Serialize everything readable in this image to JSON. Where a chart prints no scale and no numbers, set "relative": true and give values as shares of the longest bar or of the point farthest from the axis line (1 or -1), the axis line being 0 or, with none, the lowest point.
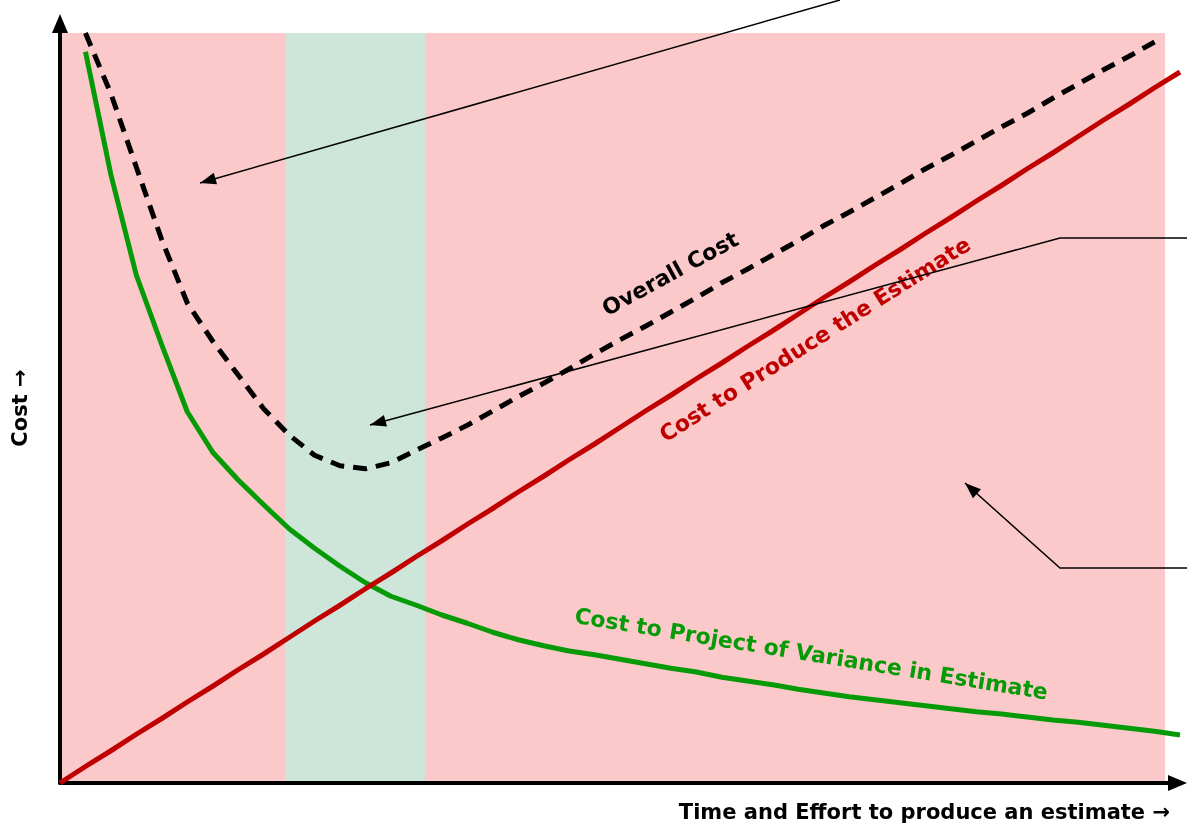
{
  "chart_data": {
    "type": "line",
    "relative": true,
    "xlabel": "Time and Effort to produce an estimate →",
    "ylabel": "Cost →",
    "grid": false,
    "legend": false,
    "marker": "none",
    "categories": [
      null,
      null,
      null,
      null,
      null,
      null,
      null,
      null,
      null,
      null,
      null,
      null,
      null,
      null,
      null,
      null,
      null,
      null,
      null,
      null,
      null,
      null,
      null,
      null,
      null,
      null,
      null,
      null,
      null,
      null,
      null,
      null,
      null,
      null,
      null,
      null,
      null,
      null,
      null,
      null,
      null,
      null,
      null,
      null,
      null
    ],
    "series": [
      {
        "name": "Cost to Project of Variance in Estimate",
        "color": "#079a07",
        "line_style": "solid",
        "values": [
          null,
          0.975,
          0.811,
          0.677,
          0.584,
          0.495,
          0.441,
          0.404,
          0.371,
          0.339,
          0.313,
          0.289,
          0.267,
          0.249,
          0.237,
          0.224,
          0.213,
          0.201,
          0.191,
          0.183,
          0.176,
          0.171,
          0.165,
          0.159,
          0.153,
          0.148,
          0.141,
          0.136,
          0.131,
          0.125,
          0.12,
          0.115,
          0.111,
          0.107,
          0.103,
          0.099,
          0.095,
          0.092,
          0.088,
          0.084,
          0.081,
          0.077,
          0.073,
          0.069,
          0.064
        ]
      },
      {
        "name": "Cost to Produce the Estimate",
        "color": "#c00000",
        "line_style": "solid",
        "values": [
          0,
          0.022,
          0.043,
          0.065,
          0.086,
          0.108,
          0.129,
          0.151,
          0.172,
          0.194,
          0.216,
          0.237,
          0.259,
          0.28,
          0.302,
          0.323,
          0.345,
          0.366,
          0.388,
          0.409,
          0.431,
          0.452,
          0.474,
          0.496,
          0.517,
          0.539,
          0.56,
          0.582,
          0.603,
          0.625,
          0.647,
          0.668,
          0.69,
          0.711,
          0.733,
          0.754,
          0.776,
          0.797,
          0.819,
          0.84,
          0.862,
          0.884,
          0.905,
          0.927,
          0.948
        ]
      },
      {
        "name": "Overall Cost",
        "color": "#000000",
        "line_style": "dashed",
        "values": [
          null,
          1,
          0.919,
          0.821,
          0.724,
          0.64,
          0.589,
          0.544,
          0.499,
          0.464,
          0.437,
          0.423,
          0.419,
          0.427,
          0.444,
          0.46,
          0.477,
          0.496,
          0.515,
          0.533,
          0.552,
          0.572,
          0.591,
          0.609,
          0.628,
          0.647,
          0.667,
          0.685,
          0.704,
          0.723,
          0.743,
          0.761,
          0.78,
          0.799,
          0.819,
          0.837,
          0.856,
          0.875,
          0.893,
          0.913,
          0.932,
          0.951,
          0.969,
          0.988,
          null
        ]
      }
    ]
  }
}
